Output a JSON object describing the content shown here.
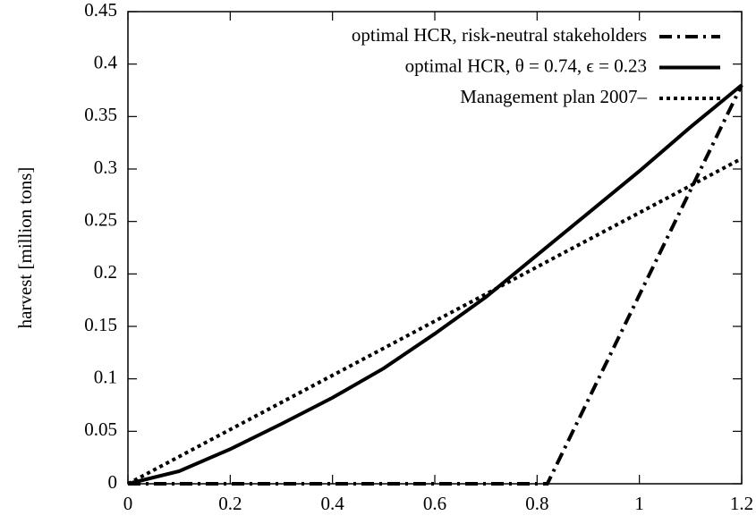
{
  "chart_data": {
    "type": "line",
    "ylabel": "harvest [million tons]",
    "xlim": [
      0,
      1.2
    ],
    "xticks": [
      0,
      0.2,
      0.4,
      0.6,
      0.8,
      1,
      1.2
    ],
    "ylim": [
      0,
      0.45
    ],
    "yticks": [
      0,
      0.05,
      0.1,
      0.15,
      0.2,
      0.25,
      0.3,
      0.35,
      0.4,
      0.45
    ],
    "legend": "top-right",
    "series": [
      {
        "name": "optimal HCR, risk-neutral stakeholders",
        "color": "#000000",
        "style": "dashdot",
        "x": [
          0,
          0.82,
          1.2
        ],
        "values": [
          0,
          0,
          0.38
        ]
      },
      {
        "name": "optimal HCR, θ = 0.74, ϵ = 0.23",
        "color": "#000000",
        "style": "solid",
        "x": [
          0,
          0.1,
          0.2,
          0.3,
          0.4,
          0.5,
          0.6,
          0.7,
          0.8,
          0.9,
          1.0,
          1.1,
          1.2
        ],
        "values": [
          0,
          0.012,
          0.033,
          0.057,
          0.082,
          0.11,
          0.143,
          0.178,
          0.218,
          0.258,
          0.298,
          0.34,
          0.38
        ]
      },
      {
        "name": "Management plan 2007–",
        "color": "#000000",
        "style": "dotted",
        "x": [
          0,
          1.2
        ],
        "values": [
          0,
          0.31
        ]
      }
    ]
  }
}
